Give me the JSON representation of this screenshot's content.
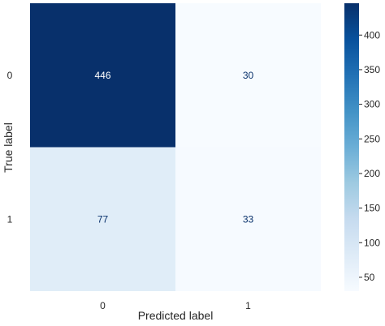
{
  "chart_data": {
    "type": "heatmap",
    "colormap": "Blues",
    "xlabel": "Predicted label",
    "ylabel": "True label",
    "x_categories": [
      "0",
      "1"
    ],
    "y_categories": [
      "0",
      "1"
    ],
    "values": [
      [
        446,
        30
      ],
      [
        77,
        33
      ]
    ],
    "cell_text_colors": [
      [
        "#ffffff",
        "#08306b"
      ],
      [
        "#08306b",
        "#08306b"
      ]
    ],
    "colorbar": {
      "range": [
        30,
        446
      ],
      "ticks": [
        50,
        100,
        150,
        200,
        250,
        300,
        350,
        400
      ],
      "tick_labels": [
        "50",
        "100",
        "150",
        "200",
        "250",
        "300",
        "350",
        "400"
      ]
    },
    "grid": false,
    "colors": {
      "low": "#f7fbff",
      "high": "#08306b"
    }
  }
}
